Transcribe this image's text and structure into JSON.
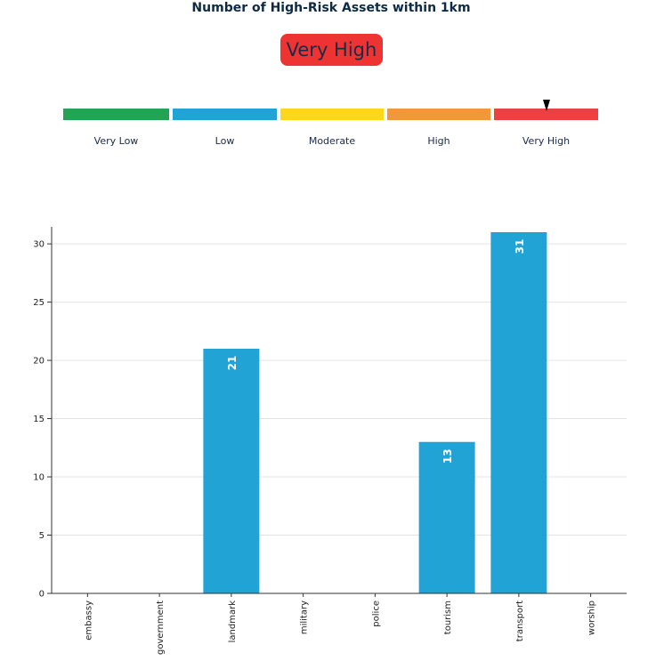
{
  "header": {
    "title": "Number of High-Risk Assets within 1km",
    "risk_level": "Very High"
  },
  "risk_scale": {
    "segments": [
      {
        "label": "Very Low",
        "color": "#21a552"
      },
      {
        "label": "Low",
        "color": "#21a3d5"
      },
      {
        "label": "Moderate",
        "color": "#fcd71b"
      },
      {
        "label": "High",
        "color": "#f2983a"
      },
      {
        "label": "Very High",
        "color": "#ee4040"
      }
    ],
    "marker_on": "Very High"
  },
  "chart_data": {
    "type": "bar",
    "title": "",
    "xlabel": "",
    "ylabel": "",
    "categories": [
      "embassy",
      "government",
      "landmark",
      "military",
      "police",
      "tourism",
      "transport",
      "worship"
    ],
    "values": [
      0,
      0,
      21,
      0,
      0,
      13,
      31,
      0
    ],
    "data_labels": [
      "",
      "",
      "21",
      "",
      "",
      "13",
      "31",
      ""
    ],
    "ylim": [
      0,
      31
    ],
    "yticks": [
      0,
      5,
      10,
      15,
      20,
      25,
      30
    ],
    "bar_color": "#21a3d5",
    "grid": "horizontal"
  }
}
